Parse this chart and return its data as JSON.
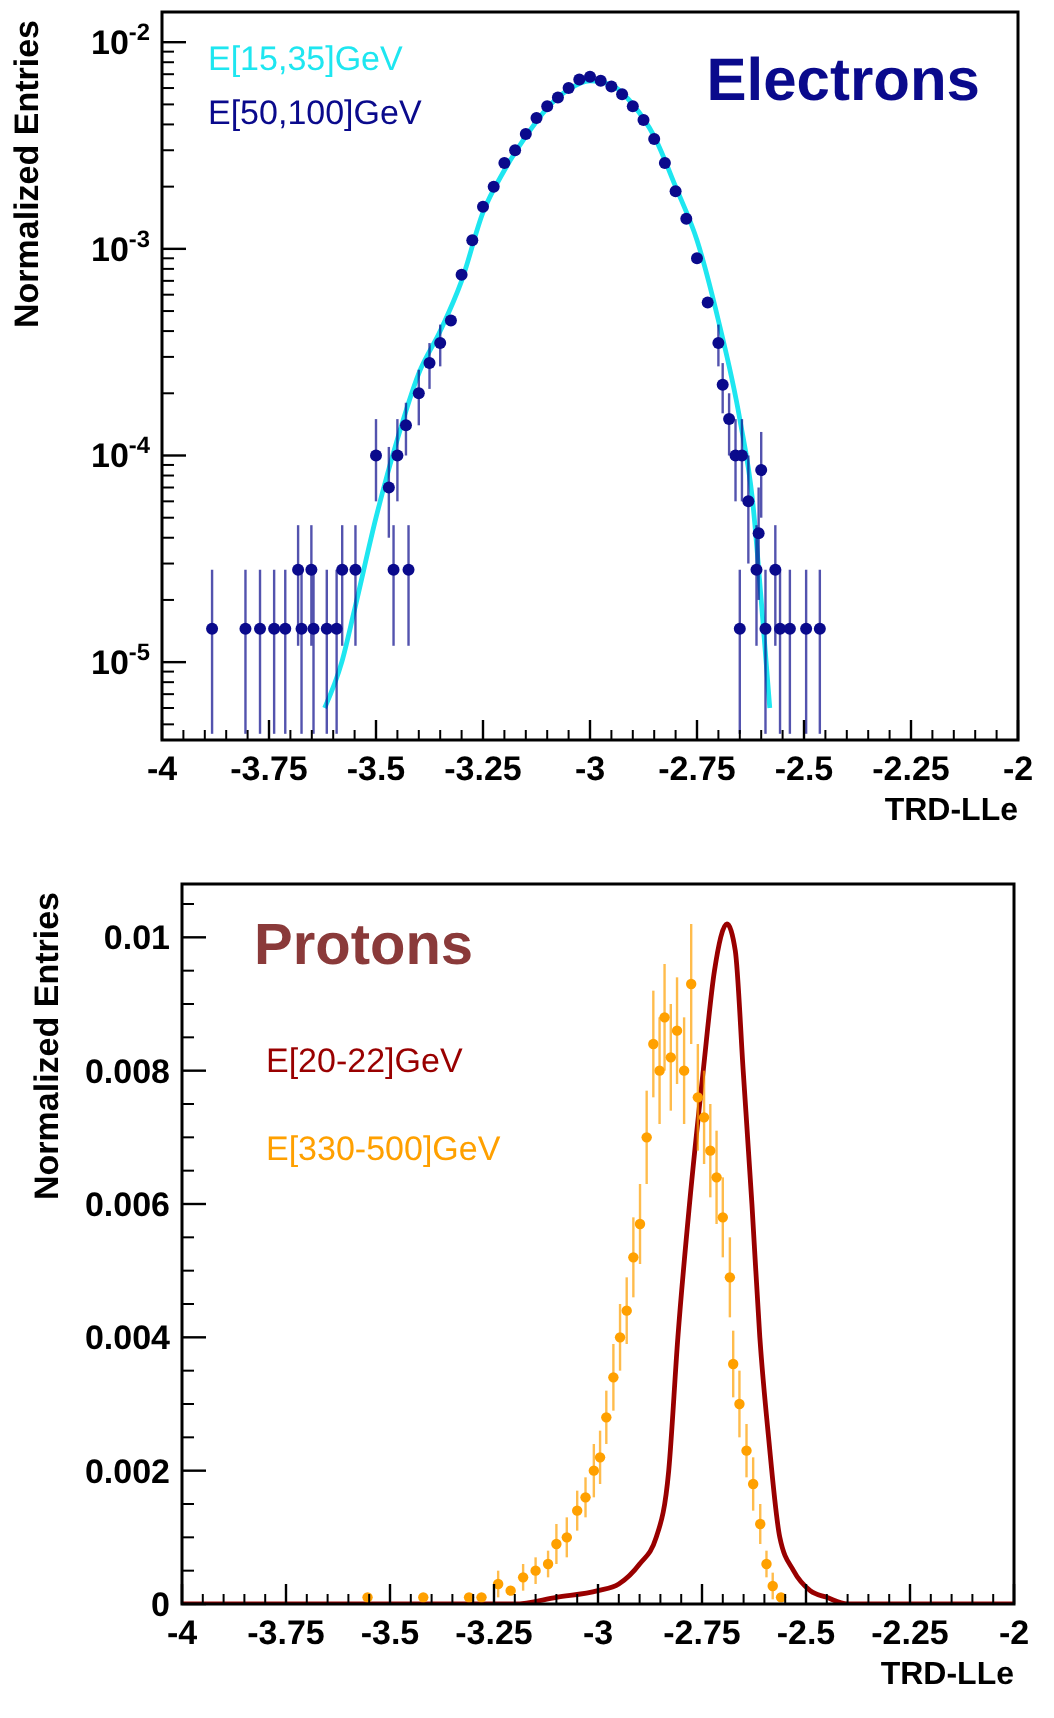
{
  "chart_data": [
    {
      "type": "line",
      "title": "Electrons",
      "xlabel": "TRD-LLe",
      "ylabel": "Normalized Entries",
      "log": "y",
      "legend": "top left",
      "xlim": [
        -4,
        -2
      ],
      "ylim": [
        4.2e-06,
        0.014
      ],
      "xticks": [
        -4,
        -3.75,
        -3.5,
        -3.25,
        -3,
        -2.75,
        -2.5,
        -2.25,
        -2
      ],
      "yticks": [
        {
          "value": 0.01,
          "label": "10$^{-2}$"
        },
        {
          "value": 0.001,
          "label": "10$^{-3}$"
        },
        {
          "value": 0.0001,
          "label": "10$^{-4}$"
        },
        {
          "value": 1e-05,
          "label": "10$^{-5}$"
        }
      ],
      "series": [
        {
          "name": "E[15,35]GeV",
          "color": "#1ee6f0",
          "marker": "none",
          "x": [
            -3.62,
            -3.58,
            -3.55,
            -3.5,
            -3.45,
            -3.4,
            -3.35,
            -3.3,
            -3.25,
            -3.2,
            -3.15,
            -3.1,
            -3.05,
            -3.0,
            -2.95,
            -2.9,
            -2.85,
            -2.8,
            -2.75,
            -2.7,
            -2.65,
            -2.62,
            -2.6,
            -2.58
          ],
          "values": [
            6e-06,
            1e-05,
            1.8e-05,
            5e-05,
            0.00012,
            0.00025,
            0.0004,
            0.0007,
            0.0015,
            0.0024,
            0.0035,
            0.0048,
            0.0059,
            0.0065,
            0.0062,
            0.005,
            0.0035,
            0.002,
            0.0011,
            0.00045,
            0.00015,
            6e-05,
            2e-05,
            6e-06
          ]
        },
        {
          "name": "E[50,100]GeV",
          "color": "#0a0a8c",
          "type": "scatter",
          "marker": "circle",
          "x": [
            -3.883,
            -3.805,
            -3.771,
            -3.738,
            -3.712,
            -3.682,
            -3.674,
            -3.651,
            -3.646,
            -3.615,
            -3.592,
            -3.579,
            -3.548,
            -3.5,
            -3.47,
            -3.459,
            -3.45,
            -3.43,
            -3.424,
            -3.4,
            -3.375,
            -3.35,
            -3.325,
            -3.3,
            -3.275,
            -3.25,
            -3.225,
            -3.2,
            -3.175,
            -3.15,
            -3.125,
            -3.1,
            -3.075,
            -3.05,
            -3.025,
            -3.0,
            -2.975,
            -2.95,
            -2.925,
            -2.9,
            -2.875,
            -2.85,
            -2.825,
            -2.8,
            -2.775,
            -2.75,
            -2.725,
            -2.7,
            -2.69,
            -2.675,
            -2.66,
            -2.65,
            -2.645,
            -2.63,
            -2.611,
            -2.606,
            -2.6,
            -2.59,
            -2.567,
            -2.556,
            -2.533,
            -2.495,
            -2.463
          ],
          "values": [
            1.45e-05,
            1.45e-05,
            1.45e-05,
            1.45e-05,
            1.45e-05,
            2.8e-05,
            1.45e-05,
            2.8e-05,
            1.45e-05,
            1.45e-05,
            1.45e-05,
            2.8e-05,
            2.8e-05,
            0.0001,
            7e-05,
            2.8e-05,
            0.0001,
            0.00014,
            2.8e-05,
            0.0002,
            0.00028,
            0.00035,
            0.00045,
            0.00075,
            0.0011,
            0.0016,
            0.002,
            0.0026,
            0.003,
            0.0036,
            0.0043,
            0.0049,
            0.0054,
            0.006,
            0.0066,
            0.0068,
            0.0065,
            0.0061,
            0.0056,
            0.0049,
            0.0042,
            0.0034,
            0.0026,
            0.0019,
            0.0014,
            0.0009,
            0.00055,
            0.00035,
            0.00022,
            0.00015,
            0.0001,
            1.45e-05,
            0.0001,
            6e-05,
            2.8e-05,
            4.2e-05,
            8.5e-05,
            1.45e-05,
            2.8e-05,
            1.45e-05,
            1.45e-05,
            1.45e-05,
            1.45e-05
          ],
          "errors": [
            [
              4.5e-06,
              2.8e-05
            ],
            [
              4.5e-06,
              2.8e-05
            ],
            [
              4.5e-06,
              2.8e-05
            ],
            [
              4.5e-06,
              2.8e-05
            ],
            [
              4.5e-06,
              2.8e-05
            ],
            [
              1.2e-05,
              4.6e-05
            ],
            [
              4.5e-06,
              2.8e-05
            ],
            [
              1.2e-05,
              4.6e-05
            ],
            [
              4.5e-06,
              2.8e-05
            ],
            [
              4.5e-06,
              2.8e-05
            ],
            [
              4.5e-06,
              2.8e-05
            ],
            [
              1.2e-05,
              4.6e-05
            ],
            [
              1.2e-05,
              4.6e-05
            ],
            [
              6e-05,
              0.00015
            ],
            [
              4e-05,
              0.00011
            ],
            [
              1.2e-05,
              4.6e-05
            ],
            [
              6e-05,
              0.00015
            ],
            4e-05,
            [
              1.2e-05,
              4.6e-05
            ],
            6e-05,
            7e-05,
            8e-05,
            null,
            null,
            null,
            null,
            null,
            null,
            null,
            null,
            null,
            null,
            null,
            null,
            null,
            null,
            null,
            null,
            null,
            null,
            null,
            null,
            null,
            null,
            null,
            null,
            null,
            8e-05,
            6e-05,
            5e-05,
            [
              6e-05,
              0.00015
            ],
            [
              4.5e-06,
              2.8e-05
            ],
            [
              6e-05,
              0.00015
            ],
            [
              3e-05,
              0.0001
            ],
            [
              1.2e-05,
              4.6e-05
            ],
            [
              2e-05,
              7e-05
            ],
            [
              5e-05,
              0.00013
            ],
            [
              4.5e-06,
              2.8e-05
            ],
            [
              1.2e-05,
              4.6e-05
            ],
            [
              4.5e-06,
              2.8e-05
            ],
            [
              4.5e-06,
              2.8e-05
            ],
            [
              4.5e-06,
              2.8e-05
            ],
            [
              4.5e-06,
              2.8e-05
            ]
          ]
        }
      ]
    },
    {
      "type": "line",
      "title": "Protons",
      "xlabel": "TRD-LLe",
      "ylabel": "Normalized Entries",
      "legend": "top left",
      "xlim": [
        -4,
        -2
      ],
      "ylim": [
        0,
        0.0108
      ],
      "xticks": [
        -4,
        -3.75,
        -3.5,
        -3.25,
        -3,
        -2.75,
        -2.5,
        -2.25,
        -2
      ],
      "yticks": [
        0,
        0.002,
        0.004,
        0.006,
        0.008,
        0.01
      ],
      "series": [
        {
          "name": "E[20-22]GeV",
          "color": "#990000",
          "marker": "none",
          "x": [
            -4,
            -3.2,
            -3.1,
            -3.0,
            -2.95,
            -2.9,
            -2.86,
            -2.83,
            -2.808,
            -2.78,
            -2.747,
            -2.72,
            -2.69,
            -2.67,
            -2.651,
            -2.63,
            -2.611,
            -2.59,
            -2.563,
            -2.53,
            -2.49,
            -2.45,
            -2.4,
            -2
          ],
          "values": [
            0,
            0,
            0.0001,
            0.0002,
            0.0003,
            0.0006,
            0.001,
            0.002,
            0.004,
            0.006,
            0.008,
            0.0095,
            0.0102,
            0.0098,
            0.008,
            0.006,
            0.004,
            0.0025,
            0.001,
            0.0005,
            0.0002,
            0.0001,
            0,
            0
          ]
        },
        {
          "name": "E[330-500]GeV",
          "color": "#ffa000",
          "type": "scatter",
          "marker": "circle",
          "x": [
            -3.554,
            -3.42,
            -3.31,
            -3.28,
            -3.24,
            -3.21,
            -3.18,
            -3.15,
            -3.12,
            -3.1,
            -3.075,
            -3.05,
            -3.03,
            -3.01,
            -2.995,
            -2.98,
            -2.963,
            -2.947,
            -2.931,
            -2.915,
            -2.899,
            -2.883,
            -2.867,
            -2.852,
            -2.84,
            -2.825,
            -2.81,
            -2.793,
            -2.776,
            -2.76,
            -2.745,
            -2.73,
            -2.715,
            -2.7,
            -2.683,
            -2.675,
            -2.66,
            -2.643,
            -2.627,
            -2.61,
            -2.595,
            -2.58,
            -2.56
          ],
          "values": [
            0.0001,
            0.0001,
            0.0001,
            0.0001,
            0.0003,
            0.0002,
            0.0004,
            0.0005,
            0.0006,
            0.0009,
            0.001,
            0.0014,
            0.0016,
            0.002,
            0.0022,
            0.0028,
            0.0034,
            0.004,
            0.0044,
            0.0052,
            0.0057,
            0.007,
            0.0084,
            0.008,
            0.0088,
            0.0082,
            0.0086,
            0.008,
            0.0093,
            0.0076,
            0.0073,
            0.0068,
            0.0064,
            0.0058,
            0.0049,
            0.0036,
            0.003,
            0.0023,
            0.0018,
            0.0012,
            0.0006,
            0.00027,
            0.0001
          ],
          "errors": [
            null,
            null,
            null,
            null,
            0.0002,
            null,
            0.0002,
            0.0002,
            0.0002,
            0.0003,
            0.0003,
            0.0003,
            0.0003,
            0.0004,
            0.0004,
            0.0004,
            0.0005,
            0.0005,
            0.0005,
            0.0006,
            0.0006,
            0.0007,
            0.0008,
            0.0008,
            0.0008,
            0.0008,
            0.0008,
            0.0008,
            0.0009,
            0.0008,
            0.0007,
            0.0007,
            0.0007,
            0.0006,
            0.0006,
            0.0005,
            0.0005,
            0.0004,
            0.0004,
            0.0003,
            0.0002,
            0.0002,
            null
          ]
        }
      ]
    }
  ]
}
